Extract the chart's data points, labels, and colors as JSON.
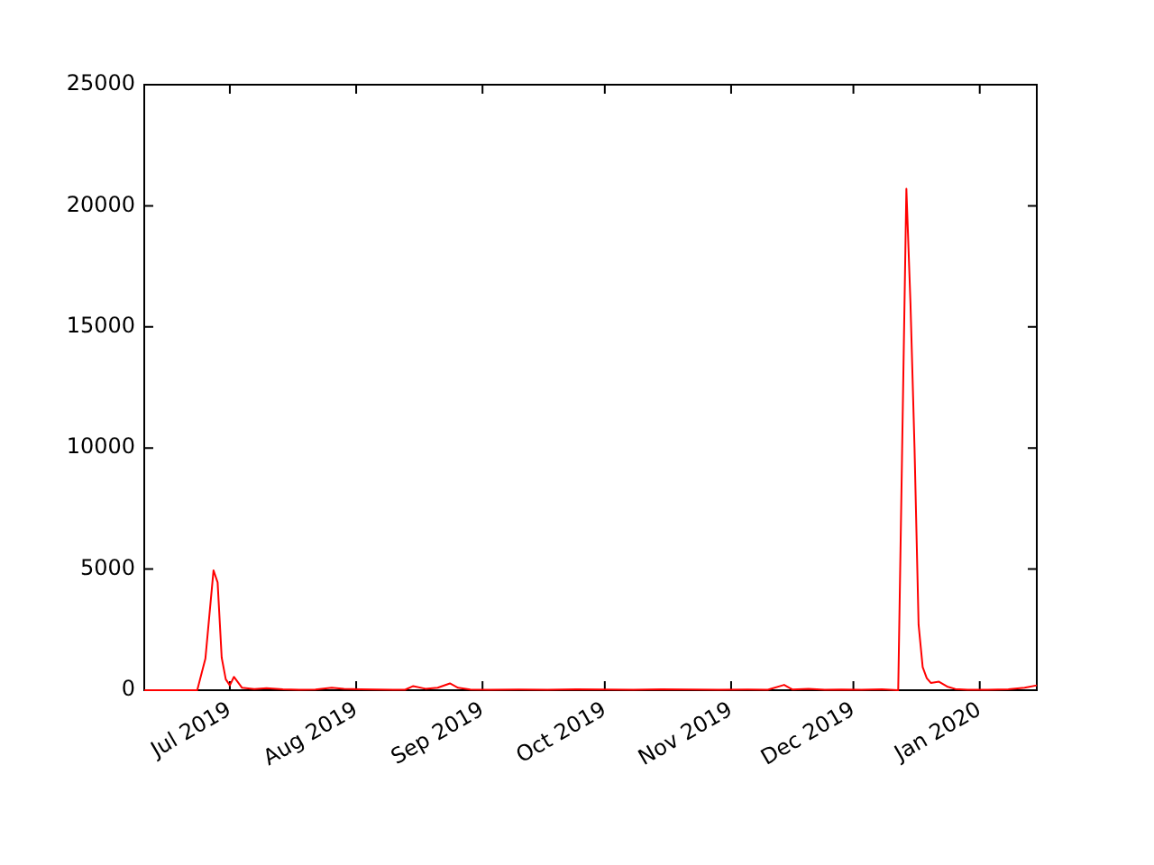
{
  "chart_data": {
    "type": "line",
    "x": [
      "2019-06-10",
      "2019-06-16",
      "2019-06-22",
      "2019-06-23",
      "2019-06-25",
      "2019-06-27",
      "2019-06-28",
      "2019-06-29",
      "2019-06-30",
      "2019-07-01",
      "2019-07-02",
      "2019-07-04",
      "2019-07-07",
      "2019-07-10",
      "2019-07-14",
      "2019-07-18",
      "2019-07-22",
      "2019-07-26",
      "2019-07-29",
      "2019-08-02",
      "2019-08-06",
      "2019-08-10",
      "2019-08-13",
      "2019-08-15",
      "2019-08-18",
      "2019-08-21",
      "2019-08-24",
      "2019-08-26",
      "2019-08-29",
      "2019-09-03",
      "2019-09-10",
      "2019-09-17",
      "2019-09-24",
      "2019-10-01",
      "2019-10-08",
      "2019-10-15",
      "2019-10-22",
      "2019-10-29",
      "2019-11-05",
      "2019-11-10",
      "2019-11-14",
      "2019-11-16",
      "2019-11-20",
      "2019-11-24",
      "2019-11-28",
      "2019-12-03",
      "2019-12-08",
      "2019-12-12",
      "2019-12-14",
      "2019-12-15",
      "2019-12-16",
      "2019-12-17",
      "2019-12-18",
      "2019-12-19",
      "2019-12-20",
      "2019-12-22",
      "2019-12-24",
      "2019-12-26",
      "2019-12-29",
      "2020-01-03",
      "2020-01-08",
      "2020-01-12",
      "2020-01-15"
    ],
    "series": [
      {
        "color": "#ff0000",
        "values": [
          0,
          0,
          0,
          0,
          1300,
          4950,
          4450,
          1350,
          450,
          200,
          550,
          100,
          50,
          80,
          40,
          20,
          30,
          100,
          60,
          40,
          30,
          20,
          20,
          170,
          60,
          100,
          280,
          100,
          30,
          20,
          30,
          20,
          40,
          30,
          20,
          40,
          30,
          20,
          30,
          20,
          220,
          30,
          60,
          20,
          30,
          20,
          40,
          0,
          20700,
          16000,
          10000,
          2700,
          950,
          500,
          300,
          350,
          150,
          50,
          20,
          20,
          40,
          100,
          200
        ]
      }
    ],
    "xlim": [
      "2019-06-10",
      "2020-01-15"
    ],
    "xticks": [
      {
        "value": "2019-07-01",
        "label": "Jul 2019"
      },
      {
        "value": "2019-08-01",
        "label": "Aug 2019"
      },
      {
        "value": "2019-09-01",
        "label": "Sep 2019"
      },
      {
        "value": "2019-10-01",
        "label": "Oct 2019"
      },
      {
        "value": "2019-11-01",
        "label": "Nov 2019"
      },
      {
        "value": "2019-12-01",
        "label": "Dec 2019"
      },
      {
        "value": "2020-01-01",
        "label": "Jan 2020"
      }
    ],
    "ylim": [
      0,
      25000
    ],
    "yticks": [
      0,
      5000,
      10000,
      15000,
      20000,
      25000
    ],
    "grid": false,
    "legend": false,
    "marker": "none",
    "line_style": "solid"
  }
}
